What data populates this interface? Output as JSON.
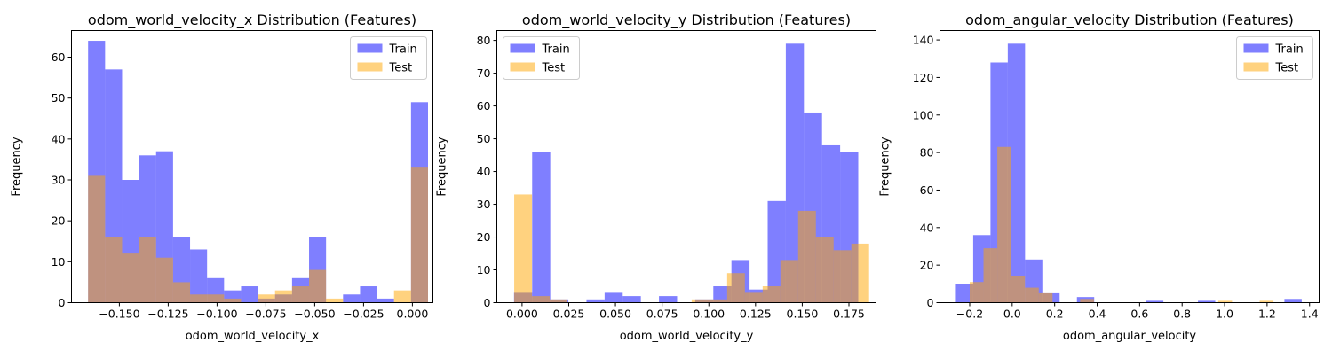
{
  "chart_data": [
    {
      "type": "bar",
      "title": "odom_world_velocity_x Distribution (Features)",
      "xlabel": "odom_world_velocity_x",
      "ylabel": "Frequency",
      "xlim": [
        -0.1745,
        0.0105
      ],
      "ylim": [
        0,
        66.5
      ],
      "xticks": [
        -0.15,
        -0.125,
        -0.1,
        -0.075,
        -0.05,
        -0.025,
        0.0
      ],
      "xtick_labels": [
        "−0.150",
        "−0.125",
        "−0.100",
        "−0.075",
        "−0.050",
        "−0.025",
        "0.000"
      ],
      "yticks": [
        0,
        10,
        20,
        30,
        40,
        50,
        60
      ],
      "legend_position": "upper right",
      "series": [
        {
          "name": "Train",
          "color": "#0000ff",
          "alpha": 0.5,
          "bin_edges": [
            -0.166,
            -0.1573,
            -0.1486,
            -0.1399,
            -0.1312,
            -0.1225,
            -0.1138,
            -0.1051,
            -0.0964,
            -0.0877,
            -0.079,
            -0.0703,
            -0.0616,
            -0.0529,
            -0.0442,
            -0.0355,
            -0.0268,
            -0.0181,
            -0.0094,
            -0.0007,
            0.008
          ],
          "counts": [
            64,
            57,
            30,
            36,
            37,
            16,
            13,
            6,
            3,
            4,
            1,
            2,
            6,
            16,
            0,
            2,
            4,
            1,
            0,
            49
          ]
        },
        {
          "name": "Test",
          "color": "#ffa500",
          "alpha": 0.5,
          "bin_edges": [
            -0.166,
            -0.1573,
            -0.1486,
            -0.1399,
            -0.1312,
            -0.1225,
            -0.1138,
            -0.1051,
            -0.0964,
            -0.0877,
            -0.079,
            -0.0703,
            -0.0616,
            -0.0529,
            -0.0442,
            -0.0355,
            -0.0268,
            -0.0181,
            -0.0094,
            -0.0007,
            0.008
          ],
          "counts": [
            31,
            16,
            12,
            16,
            11,
            5,
            2,
            2,
            1,
            0,
            2,
            3,
            4,
            8,
            1,
            0,
            0,
            0,
            3,
            33
          ]
        }
      ]
    },
    {
      "type": "bar",
      "title": "odom_world_velocity_y Distribution (Features)",
      "xlabel": "odom_world_velocity_y",
      "ylabel": "Frequency",
      "xlim": [
        -0.0135,
        0.1895
      ],
      "ylim": [
        0,
        83
      ],
      "xticks": [
        0.0,
        0.025,
        0.05,
        0.075,
        0.1,
        0.125,
        0.15,
        0.175
      ],
      "xtick_labels": [
        "0.000",
        "0.025",
        "0.050",
        "0.075",
        "0.100",
        "0.125",
        "0.150",
        "0.175"
      ],
      "yticks": [
        0,
        10,
        20,
        30,
        40,
        50,
        60,
        70,
        80
      ],
      "legend_position": "upper left",
      "series": [
        {
          "name": "Train",
          "color": "#0000ff",
          "alpha": 0.5,
          "bin_edges": [
            -0.0043,
            0.0054,
            0.0151,
            0.0248,
            0.0345,
            0.0442,
            0.0539,
            0.0636,
            0.0733,
            0.083,
            0.0927,
            0.1024,
            0.1121,
            0.1218,
            0.1315,
            0.1412,
            0.1509,
            0.1606,
            0.1703,
            0.18
          ],
          "counts": [
            3,
            46,
            1,
            0,
            1,
            3,
            2,
            0,
            2,
            0,
            1,
            5,
            13,
            4,
            31,
            79,
            58,
            48,
            46
          ]
        },
        {
          "name": "Test",
          "color": "#ffa500",
          "alpha": 0.5,
          "bin_edges": [
            -0.0042,
            0.0053,
            0.0148,
            0.0243,
            0.0338,
            0.0433,
            0.0528,
            0.0623,
            0.0718,
            0.0813,
            0.0908,
            0.1003,
            0.1098,
            0.1193,
            0.1288,
            0.1383,
            0.1478,
            0.1573,
            0.1668,
            0.1763,
            0.1858
          ],
          "counts": [
            33,
            2,
            1,
            0,
            0,
            0,
            0,
            0,
            0,
            0,
            1,
            1,
            9,
            3,
            5,
            13,
            28,
            20,
            16,
            18
          ]
        }
      ]
    },
    {
      "type": "bar",
      "title": "odom_angular_velocity Distribution (Features)",
      "xlabel": "odom_angular_velocity",
      "ylabel": "Frequency",
      "xlim": [
        -0.34,
        1.445
      ],
      "ylim": [
        0,
        145
      ],
      "xticks": [
        -0.2,
        0.0,
        0.2,
        0.4,
        0.6,
        0.8,
        1.0,
        1.2,
        1.4
      ],
      "xtick_labels": [
        "−0.2",
        "0.0",
        "0.2",
        "0.4",
        "0.6",
        "0.8",
        "1.0",
        "1.2",
        "1.4"
      ],
      "yticks": [
        0,
        20,
        40,
        60,
        80,
        100,
        120,
        140
      ],
      "legend_position": "upper right",
      "series": [
        {
          "name": "Train",
          "color": "#0000ff",
          "alpha": 0.5,
          "bin_edges": [
            -0.265,
            -0.1836,
            -0.1022,
            -0.0208,
            0.0606,
            0.142,
            0.2234,
            0.3048,
            0.3862,
            0.4676,
            0.549,
            0.6304,
            0.7118,
            0.7932,
            0.8746,
            0.956,
            1.0374,
            1.1188,
            1.2002,
            1.2816,
            1.363
          ],
          "counts": [
            10,
            36,
            128,
            138,
            23,
            5,
            0,
            3,
            0,
            0,
            0,
            1,
            0,
            0,
            1,
            0,
            0,
            0,
            0,
            2
          ]
        },
        {
          "name": "Test",
          "color": "#ffa500",
          "alpha": 0.5,
          "bin_edges": [
            -0.2,
            -0.135,
            -0.07,
            -0.005,
            0.06,
            0.125,
            0.19,
            0.255,
            0.32,
            0.385,
            0.45,
            0.515,
            0.58,
            0.645,
            0.71,
            0.775,
            0.84,
            0.905,
            0.97,
            1.035,
            1.1,
            1.165,
            1.23
          ],
          "counts": [
            11,
            29,
            83,
            14,
            8,
            5,
            0,
            0,
            2,
            0,
            0,
            0,
            0,
            0,
            0,
            0,
            0,
            0,
            1,
            0,
            0,
            1
          ]
        }
      ]
    }
  ]
}
